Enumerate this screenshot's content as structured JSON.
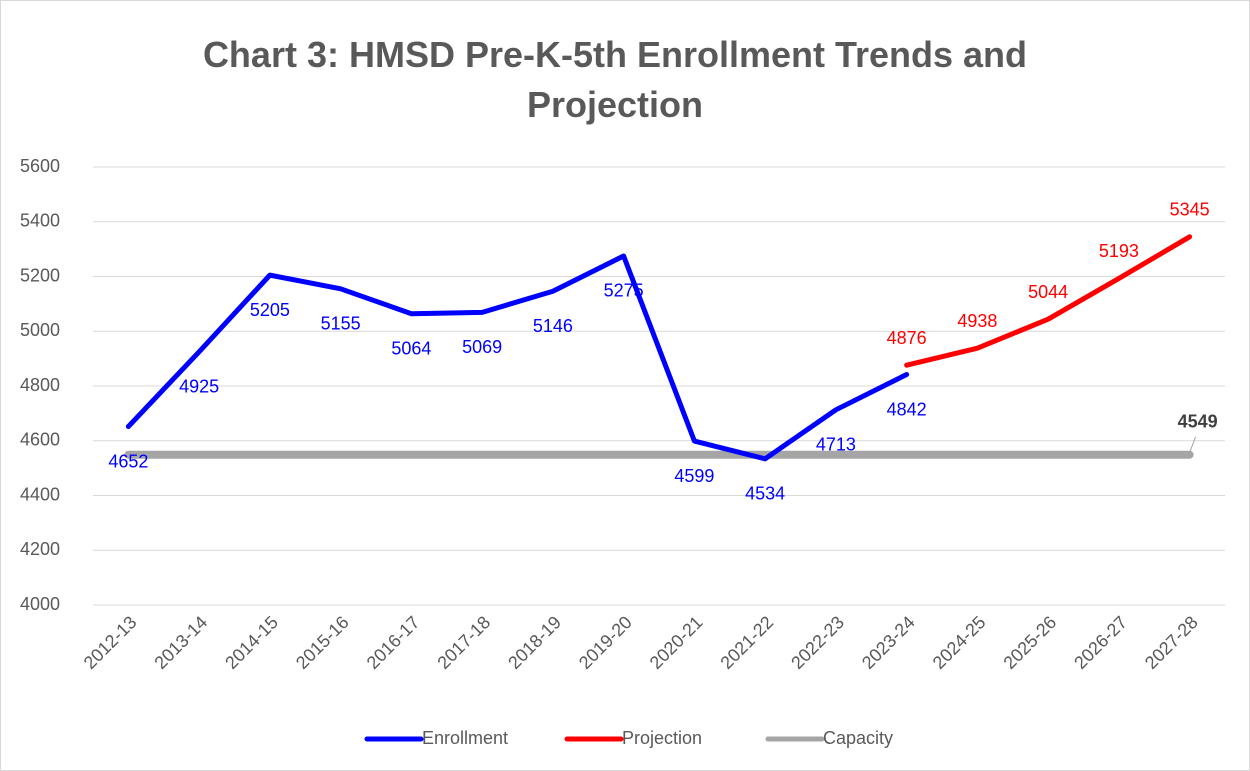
{
  "chart_data": {
    "type": "line",
    "title": "Chart 3: HMSD Pre-K-5th Enrollment Trends and Projection",
    "categories": [
      "2012-13",
      "2013-14",
      "2014-15",
      "2015-16",
      "2016-17",
      "2017-18",
      "2018-19",
      "2019-20",
      "2020-21",
      "2021-22",
      "2022-23",
      "2023-24",
      "2024-25",
      "2025-26",
      "2026-27",
      "2027-28"
    ],
    "series": [
      {
        "name": "Enrollment",
        "color": "#0000ff",
        "values": [
          4652,
          4925,
          5205,
          5155,
          5064,
          5069,
          5146,
          5275,
          4599,
          4534,
          4713,
          4842,
          null,
          null,
          null,
          null
        ],
        "data_labels": "all"
      },
      {
        "name": "Projection",
        "color": "#ff0000",
        "values": [
          null,
          null,
          null,
          null,
          null,
          null,
          null,
          null,
          null,
          null,
          null,
          4876,
          4938,
          5044,
          5193,
          5345
        ],
        "data_labels": "all"
      },
      {
        "name": "Capacity",
        "color": "#a5a5a5",
        "values": [
          4549,
          4549,
          4549,
          4549,
          4549,
          4549,
          4549,
          4549,
          4549,
          4549,
          4549,
          4549,
          4549,
          4549,
          4549,
          4549
        ],
        "data_labels": "last"
      }
    ],
    "ylim": [
      4000,
      5600
    ],
    "yticks": [
      4000,
      4200,
      4400,
      4600,
      4800,
      5000,
      5200,
      5400,
      5600
    ],
    "grid": true,
    "legend": "bottom"
  }
}
